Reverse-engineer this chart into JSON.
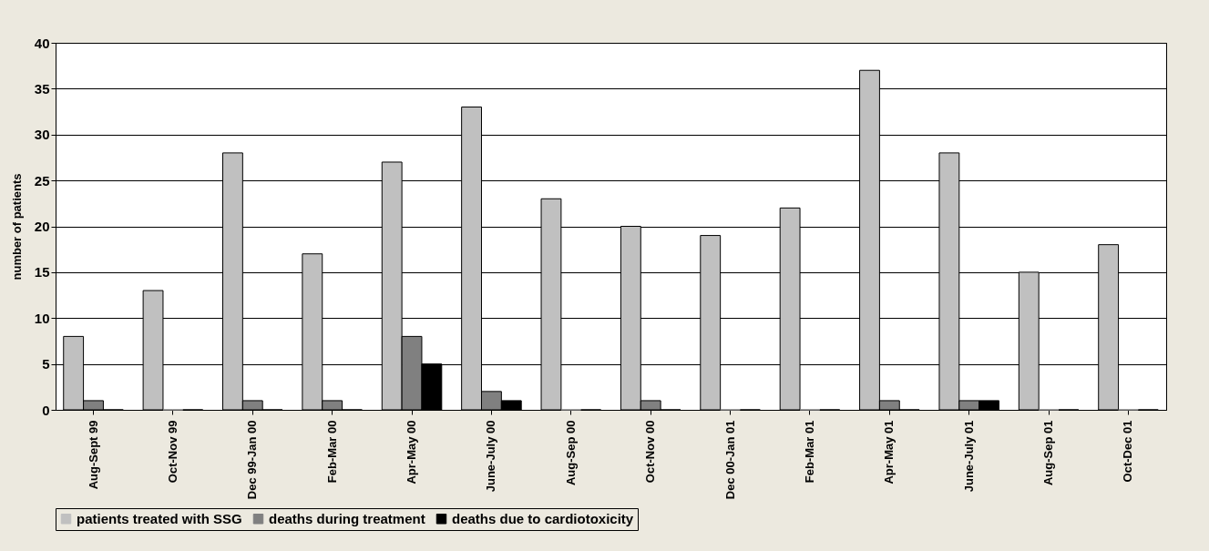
{
  "chart_data": {
    "type": "bar",
    "ylabel": "number of patients",
    "categories": [
      "Aug-Sept 99",
      "Oct-Nov 99",
      "Dec 99-Jan 00",
      "Feb-Mar 00",
      "Apr-May 00",
      "June-July 00",
      "Aug-Sep 00",
      "Oct-Nov 00",
      "Dec 00-Jan 01",
      "Feb-Mar 01",
      "Apr-May 01",
      "June-July 01",
      "Aug-Sep 01",
      "Oct-Dec 01"
    ],
    "series": [
      {
        "name": "patients treated with SSG",
        "color": "#c0c0c0",
        "values": [
          8,
          13,
          28,
          17,
          27,
          33,
          23,
          20,
          19,
          22,
          37,
          28,
          15,
          18
        ]
      },
      {
        "name": "deaths during treatment",
        "color": "#808080",
        "values": [
          1,
          0,
          1,
          1,
          8,
          2,
          0,
          1,
          0,
          0,
          1,
          1,
          0,
          0
        ]
      },
      {
        "name": "deaths due to cardiotoxicity",
        "color": "#000000",
        "values": [
          0,
          0,
          0,
          0,
          5,
          1,
          0,
          0,
          0,
          0,
          0,
          1,
          0,
          0
        ]
      }
    ],
    "ylim": [
      0,
      40
    ],
    "yticks": [
      0,
      5,
      10,
      15,
      20,
      25,
      30,
      35,
      40
    ],
    "grid": "y",
    "legend": "bottom"
  }
}
